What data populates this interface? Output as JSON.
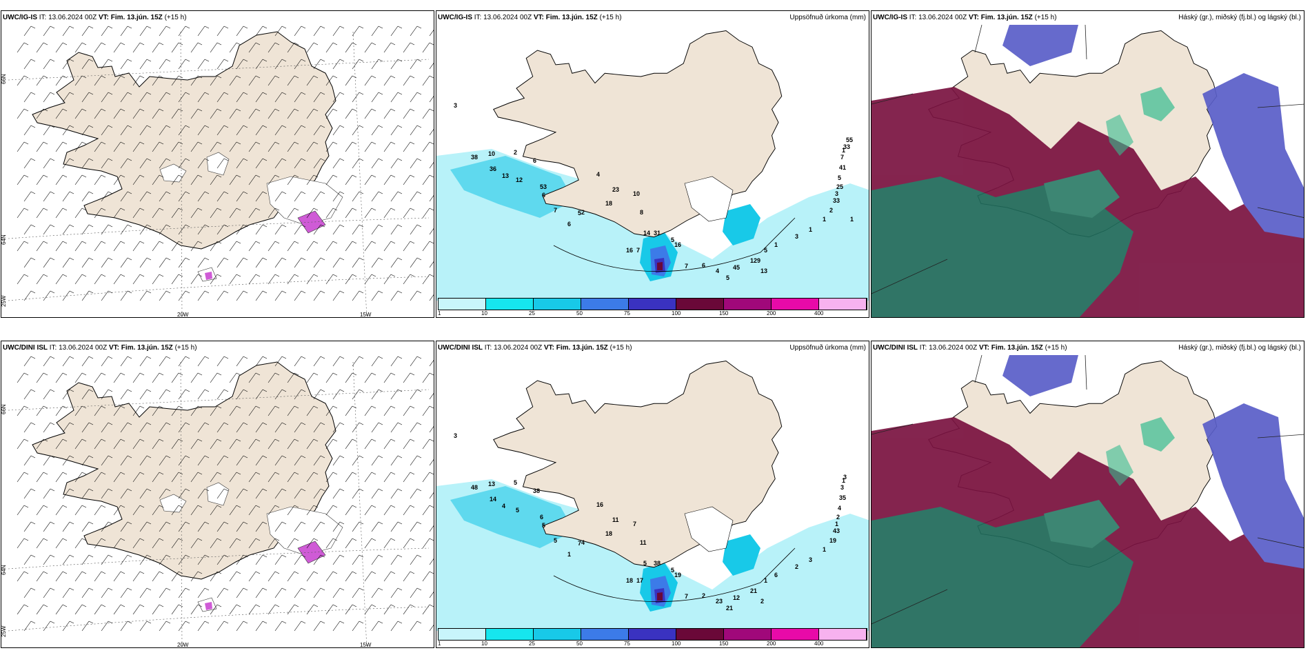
{
  "rows": [
    {
      "model": "UWC/IG-IS",
      "wind": {
        "it_label": "IT: 13.06.2024 00Z",
        "vt_label": "VT: Fim. 13.jún. 15Z",
        "lead": "(+15 h)"
      },
      "precip": {
        "it_label": "IT: 13.06.2024 00Z",
        "vt_label": "VT: Fim. 13.jún. 15Z",
        "lead": "(+15 h)",
        "right_title": "Uppsöfnuð úrkoma (mm)",
        "values": [
          "3",
          "38",
          "10",
          "2",
          "6",
          "36",
          "13",
          "12",
          "53",
          "6",
          "7",
          "6",
          "5",
          "2",
          "4",
          "23",
          "18",
          "10",
          "8",
          "7",
          "14",
          "16",
          "31",
          "5",
          "16",
          "7",
          "6",
          "4",
          "5",
          "45",
          "129",
          "13",
          "5",
          "1",
          "3",
          "1",
          "1",
          "2",
          "33",
          "3",
          "25",
          "5",
          "41",
          "7",
          "1",
          "33",
          "55",
          "1"
        ]
      },
      "cloud": {
        "it_label": "IT: 13.06.2024 00Z",
        "vt_label": "VT: Fim. 13.jún. 15Z",
        "lead": "(+15 h)",
        "right_title": "Háský (gr.), miðský (fj.bl.) og lágský (bl.)"
      }
    },
    {
      "model": "UWC/DINI ISL",
      "wind": {
        "it_label": "IT: 13.06.2024 00Z",
        "vt_label": "VT: Fim. 13.jún. 15Z",
        "lead": "(+15 h)"
      },
      "precip": {
        "it_label": "IT: 13.06.2024 00Z",
        "vt_label": "VT: Fim. 13.jún. 15Z",
        "lead": "(+15 h)",
        "right_title": "Uppsöfnuð úrkoma (mm)",
        "values": [
          "3",
          "48",
          "13",
          "5",
          "38",
          "14",
          "4",
          "5",
          "6",
          "5",
          "5",
          "1",
          "7",
          "4",
          "16",
          "11",
          "18",
          "7",
          "11",
          "17",
          "5",
          "18",
          "38",
          "5",
          "19",
          "7",
          "2",
          "23",
          "21",
          "12",
          "21",
          "2",
          "1",
          "6",
          "2",
          "3",
          "1",
          "19",
          "43",
          "1",
          "2",
          "4",
          "35",
          "3",
          "1",
          "3"
        ]
      },
      "cloud": {
        "it_label": "IT: 13.06.2024 00Z",
        "vt_label": "VT: Fim. 13.jún. 15Z",
        "lead": "(+15 h)",
        "right_title": "Háský (gr.), miðský (fj.bl.) og lágský (bl.)"
      }
    }
  ],
  "grid_labels": {
    "lat66": "66N",
    "lat64": "64N",
    "lon20": "20W",
    "lon15": "15W",
    "lon25": "25W"
  },
  "legend": {
    "labels": [
      "1",
      "10",
      "25",
      "50",
      "75",
      "100",
      "150",
      "200",
      "400"
    ],
    "colors": [
      "#c8f5fb",
      "#16e6ee",
      "#18c9e8",
      "#3c7be8",
      "#3a32c0",
      "#6a0838",
      "#a0087a",
      "#e80aa8",
      "#f7b2ef"
    ]
  },
  "colors": {
    "land": "#efe4d6",
    "sea_precip": "#b8f2f9",
    "precip_core": "#3a32c0",
    "high_cloud": "#1f6a5a",
    "mid_cloud": "#7a1240",
    "low_cloud": "#5a5ec8",
    "pink_ice": "#cf5bd6"
  }
}
